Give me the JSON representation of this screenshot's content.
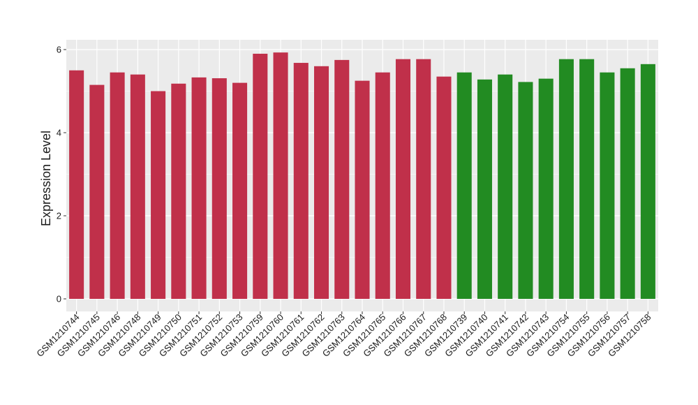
{
  "chart_data": {
    "type": "bar",
    "title": "",
    "xlabel": "",
    "ylabel": "Expression Level",
    "ylim": [
      0,
      6.2
    ],
    "yticks": [
      0,
      2,
      4,
      6
    ],
    "grid": true,
    "legend": "none",
    "categories": [
      "GSM1210744",
      "GSM1210745",
      "GSM1210746",
      "GSM1210748",
      "GSM1210749",
      "GSM1210750",
      "GSM1210751",
      "GSM1210752",
      "GSM1210753",
      "GSM1210759",
      "GSM1210760",
      "GSM1210761",
      "GSM1210762",
      "GSM1210763",
      "GSM1210764",
      "GSM1210765",
      "GSM1210766",
      "GSM1210767",
      "GSM1210768",
      "GSM1210739",
      "GSM1210740",
      "GSM1210741",
      "GSM1210742",
      "GSM1210743",
      "GSM1210754",
      "GSM1210755",
      "GSM1210756",
      "GSM1210757",
      "GSM1210758"
    ],
    "values": [
      5.5,
      5.15,
      5.45,
      5.4,
      5.0,
      5.18,
      5.33,
      5.31,
      5.2,
      5.9,
      5.93,
      5.68,
      5.6,
      5.75,
      5.25,
      5.45,
      5.77,
      5.77,
      5.35,
      5.45,
      5.28,
      5.4,
      5.22,
      5.3,
      5.77,
      5.77,
      5.45,
      5.55,
      5.65
    ],
    "colors": [
      "#C0304A",
      "#C0304A",
      "#C0304A",
      "#C0304A",
      "#C0304A",
      "#C0304A",
      "#C0304A",
      "#C0304A",
      "#C0304A",
      "#C0304A",
      "#C0304A",
      "#C0304A",
      "#C0304A",
      "#C0304A",
      "#C0304A",
      "#C0304A",
      "#C0304A",
      "#C0304A",
      "#C0304A",
      "#228B22",
      "#228B22",
      "#228B22",
      "#228B22",
      "#228B22",
      "#228B22",
      "#228B22",
      "#228B22",
      "#228B22",
      "#228B22"
    ],
    "panel_background": "#EBEBEB",
    "gridline_color": "#FFFFFF",
    "axis_text_color": "#1A1A1A",
    "tick_color": "#333333"
  }
}
